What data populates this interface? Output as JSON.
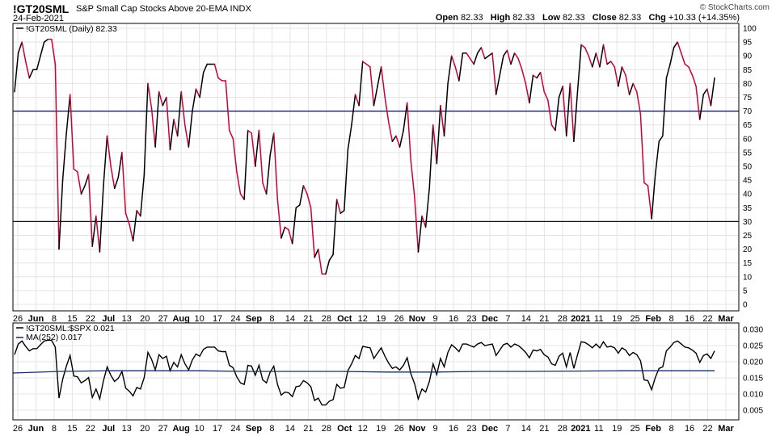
{
  "header": {
    "symbol": "!GT20SML",
    "subtitle": "S&P Small Cap Stocks Above 20-EMA  INDX",
    "date": "24-Feb-2021",
    "credit": "© StockCharts.com",
    "open_label": "Open",
    "open": "82.33",
    "high_label": "High",
    "high": "82.33",
    "low_label": "Low",
    "low": "82.33",
    "close_label": "Close",
    "close": "82.33",
    "chg_label": "Chg",
    "chg": "+10.33 (+14.35%)"
  },
  "colors": {
    "up": "#000000",
    "down": "#cc0033",
    "ma": "#1a2a6e",
    "hline": "#000066",
    "grid": "#e4e4e4"
  },
  "chart_data": [
    {
      "type": "line",
      "legend": "!GT20SML (Daily) 82.33",
      "ylim": [
        0,
        100
      ],
      "yticks": [
        0,
        5,
        10,
        15,
        20,
        25,
        30,
        35,
        40,
        45,
        50,
        55,
        60,
        65,
        70,
        75,
        80,
        85,
        90,
        95,
        100
      ],
      "hlines": [
        70,
        30
      ],
      "xlabels": [
        "26",
        "Jun",
        "8",
        "15",
        "22",
        "Jul",
        "13",
        "20",
        "27",
        "Aug",
        "10",
        "17",
        "24",
        "Sep",
        "8",
        "14",
        "21",
        "28",
        "Oct",
        "12",
        "19",
        "26",
        "Nov",
        "9",
        "16",
        "23",
        "Dec",
        "7",
        "14",
        "21",
        "28",
        "2021",
        "11",
        "19",
        "25",
        "Feb",
        "8",
        "16",
        "22",
        "Mar"
      ],
      "xlabels_bold": [
        "Jun",
        "Jul",
        "Aug",
        "Sep",
        "Oct",
        "Nov",
        "Dec",
        "2021",
        "Feb",
        "Mar"
      ],
      "x": [
        "2020-05-26",
        "2020-05-27",
        "2020-05-28",
        "2020-05-29",
        "2020-06-01",
        "2020-06-02",
        "2020-06-03",
        "2020-06-04",
        "2020-06-05",
        "2020-06-08",
        "2020-06-09",
        "2020-06-10",
        "2020-06-11",
        "2020-06-12",
        "2020-06-15",
        "2020-06-16",
        "2020-06-17",
        "2020-06-18",
        "2020-06-19",
        "2020-06-22",
        "2020-06-23",
        "2020-06-24",
        "2020-06-25",
        "2020-06-26",
        "2020-06-29",
        "2020-06-30",
        "2020-07-01",
        "2020-07-02",
        "2020-07-06",
        "2020-07-07",
        "2020-07-08",
        "2020-07-09",
        "2020-07-10",
        "2020-07-13",
        "2020-07-14",
        "2020-07-15",
        "2020-07-16",
        "2020-07-17",
        "2020-07-20",
        "2020-07-21",
        "2020-07-22",
        "2020-07-23",
        "2020-07-24",
        "2020-07-27",
        "2020-07-28",
        "2020-07-29",
        "2020-07-30",
        "2020-07-31",
        "2020-08-03",
        "2020-08-04",
        "2020-08-05",
        "2020-08-06",
        "2020-08-07",
        "2020-08-10",
        "2020-08-11",
        "2020-08-12",
        "2020-08-13",
        "2020-08-14",
        "2020-08-17",
        "2020-08-18",
        "2020-08-19",
        "2020-08-20",
        "2020-08-21",
        "2020-08-24",
        "2020-08-25",
        "2020-08-26",
        "2020-08-27",
        "2020-08-28",
        "2020-08-31",
        "2020-09-01",
        "2020-09-02",
        "2020-09-03",
        "2020-09-04",
        "2020-09-08",
        "2020-09-09",
        "2020-09-10",
        "2020-09-11",
        "2020-09-14",
        "2020-09-15",
        "2020-09-16",
        "2020-09-17",
        "2020-09-18",
        "2020-09-21",
        "2020-09-22",
        "2020-09-23",
        "2020-09-24",
        "2020-09-25",
        "2020-09-28",
        "2020-09-29",
        "2020-09-30",
        "2020-10-01",
        "2020-10-02",
        "2020-10-05",
        "2020-10-06",
        "2020-10-07",
        "2020-10-08",
        "2020-10-09",
        "2020-10-12",
        "2020-10-13",
        "2020-10-14",
        "2020-10-15",
        "2020-10-16",
        "2020-10-19",
        "2020-10-20",
        "2020-10-21",
        "2020-10-22",
        "2020-10-23",
        "2020-10-26",
        "2020-10-27",
        "2020-10-28",
        "2020-10-29",
        "2020-10-30",
        "2020-11-02",
        "2020-11-03",
        "2020-11-04",
        "2020-11-05",
        "2020-11-06",
        "2020-11-09",
        "2020-11-10",
        "2020-11-11",
        "2020-11-12",
        "2020-11-13",
        "2020-11-16",
        "2020-11-17",
        "2020-11-18",
        "2020-11-19",
        "2020-11-20",
        "2020-11-23",
        "2020-11-24",
        "2020-11-25",
        "2020-11-27",
        "2020-11-30",
        "2020-12-01",
        "2020-12-02",
        "2020-12-03",
        "2020-12-04",
        "2020-12-07",
        "2020-12-08",
        "2020-12-09",
        "2020-12-10",
        "2020-12-11",
        "2020-12-14",
        "2020-12-15",
        "2020-12-16",
        "2020-12-17",
        "2020-12-18",
        "2020-12-21",
        "2020-12-22",
        "2020-12-23",
        "2020-12-24",
        "2020-12-28",
        "2020-12-29",
        "2020-12-30",
        "2020-12-31",
        "2021-01-04",
        "2021-01-05",
        "2021-01-06",
        "2021-01-07",
        "2021-01-08",
        "2021-01-11",
        "2021-01-12",
        "2021-01-13",
        "2021-01-14",
        "2021-01-15",
        "2021-01-19",
        "2021-01-20",
        "2021-01-21",
        "2021-01-22",
        "2021-01-25",
        "2021-01-26",
        "2021-01-27",
        "2021-01-28",
        "2021-01-29",
        "2021-02-01",
        "2021-02-02",
        "2021-02-03",
        "2021-02-04",
        "2021-02-05",
        "2021-02-08",
        "2021-02-09",
        "2021-02-10",
        "2021-02-11",
        "2021-02-12",
        "2021-02-16",
        "2021-02-17",
        "2021-02-18",
        "2021-02-19",
        "2021-02-22",
        "2021-02-23",
        "2021-02-24"
      ],
      "y": [
        77,
        91,
        95,
        88,
        82,
        85,
        85,
        90,
        95,
        96,
        96,
        87,
        20,
        45,
        62,
        76,
        49,
        48,
        40,
        43,
        47,
        21,
        32,
        19,
        43,
        61,
        50,
        42,
        46,
        55,
        33,
        29,
        23,
        34,
        32,
        47,
        80,
        71,
        57,
        77,
        72,
        75,
        56,
        67,
        61,
        77,
        65,
        57,
        70,
        78,
        75,
        84,
        87,
        87,
        87,
        82,
        81,
        81,
        63,
        60,
        48,
        40,
        38,
        63,
        62,
        50,
        63,
        44,
        40,
        54,
        62,
        38,
        24,
        28,
        27,
        22,
        35,
        36,
        43,
        40,
        35,
        17,
        20,
        11,
        11,
        16,
        18,
        38,
        33,
        34,
        56,
        65,
        76,
        72,
        88,
        87,
        86,
        72,
        79,
        86,
        75,
        66,
        59,
        61,
        57,
        63,
        73,
        52,
        39,
        19,
        32,
        28,
        42,
        65,
        51,
        72,
        61,
        80,
        90,
        86,
        81,
        91,
        91,
        89,
        87,
        91,
        93,
        89,
        90,
        91,
        76,
        83,
        90,
        92,
        87,
        91,
        89,
        85,
        80,
        73,
        83,
        82,
        84,
        77,
        74,
        65,
        63,
        75,
        79,
        61,
        80,
        59,
        77,
        94,
        93,
        90,
        86,
        91,
        86,
        94,
        87,
        88,
        86,
        79,
        86,
        83,
        76,
        80,
        77,
        69,
        44,
        43,
        31,
        47,
        59,
        61,
        82,
        87,
        93,
        95,
        91,
        87,
        86,
        83,
        79,
        67,
        76,
        78,
        72,
        82
      ],
      "down": [
        false,
        false,
        false,
        true,
        true,
        false,
        false,
        false,
        false,
        false,
        true,
        true,
        true,
        false,
        false,
        false,
        true,
        true,
        true,
        false,
        false,
        true,
        false,
        true,
        false,
        false,
        true,
        true,
        false,
        false,
        true,
        true,
        true,
        false,
        true,
        false,
        false,
        true,
        true,
        false,
        true,
        false,
        true,
        false,
        true,
        false,
        true,
        true,
        false,
        false,
        true,
        false,
        false,
        false,
        false,
        true,
        true,
        true,
        true,
        true,
        true,
        true,
        true,
        false,
        true,
        true,
        false,
        true,
        true,
        false,
        false,
        true,
        true,
        false,
        true,
        true,
        false,
        false,
        false,
        true,
        true,
        true,
        false,
        true,
        true,
        false,
        false,
        false,
        true,
        false,
        false,
        false,
        false,
        true,
        false,
        true,
        true,
        true,
        false,
        false,
        true,
        true,
        true,
        false,
        true,
        false,
        false,
        true,
        true,
        true,
        false,
        true,
        false,
        false,
        true,
        false,
        true,
        false,
        false,
        true,
        true,
        false,
        false,
        true,
        true,
        false,
        false,
        true,
        false,
        false,
        true,
        false,
        false,
        false,
        true,
        false,
        true,
        true,
        true,
        true,
        false,
        true,
        false,
        true,
        true,
        true,
        true,
        false,
        false,
        true,
        false,
        true,
        false,
        false,
        true,
        true,
        true,
        false,
        true,
        false,
        true,
        false,
        true,
        true,
        false,
        true,
        true,
        false,
        true,
        true,
        true,
        true,
        true,
        false,
        false,
        false,
        false,
        false,
        false,
        false,
        true,
        true,
        true,
        true,
        true,
        true,
        false,
        false,
        true,
        false
      ]
    },
    {
      "type": "line",
      "series": [
        {
          "name": "!GT20SML:$SPX 0.021"
        },
        {
          "name": "MA(252) 0.017",
          "values": [
            0.0165,
            0.017,
            0.0172,
            0.0172,
            0.0172,
            0.017,
            0.017,
            0.017,
            0.0168,
            0.0168,
            0.017,
            0.017,
            0.0171,
            0.0172,
            0.0172,
            0.0172
          ]
        }
      ],
      "ylim": [
        0.002,
        0.032
      ],
      "yticks": [
        0.005,
        0.01,
        0.015,
        0.02,
        0.025,
        0.03
      ],
      "ytick_labels": [
        "0.005",
        "0.010",
        "0.015",
        "0.020",
        "0.025",
        "0.030"
      ]
    }
  ]
}
